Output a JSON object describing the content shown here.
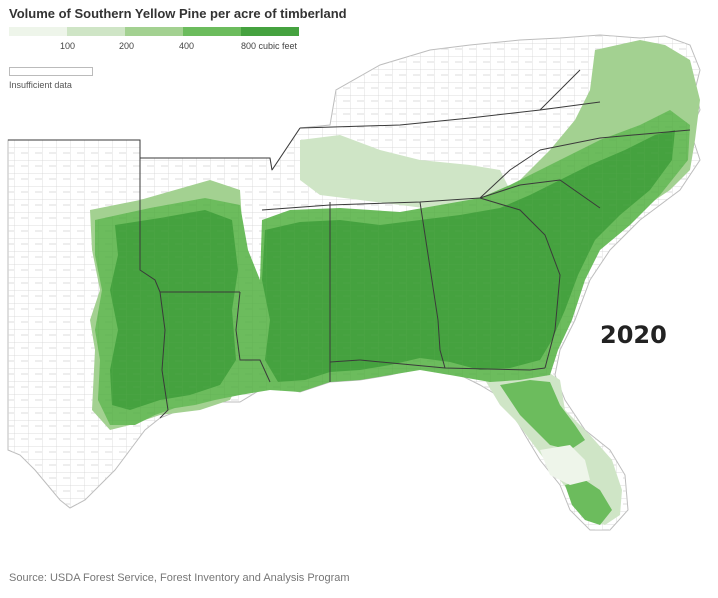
{
  "title": "Volume of Southern Yellow Pine per acre of timberland",
  "legend": {
    "ticks": [
      "100",
      "200",
      "400",
      "800 cubic feet"
    ],
    "colors": [
      "#eef5ea",
      "#cfe5c6",
      "#a3d191",
      "#6cbc5d",
      "#45a23f"
    ],
    "insufficient_label": "Insufficient data"
  },
  "year_label": "2020",
  "source": "Source: USDA Forest Service, Forest Inventory and Analysis Program",
  "map_colors": {
    "background_land": "#ffffff",
    "county_line": "#cfcfcf",
    "state_line": "#3a3a3a",
    "darkest": "#45a23f",
    "medium": "#6cbc5d",
    "light": "#a3d191",
    "lightest": "#cfe5c6"
  }
}
